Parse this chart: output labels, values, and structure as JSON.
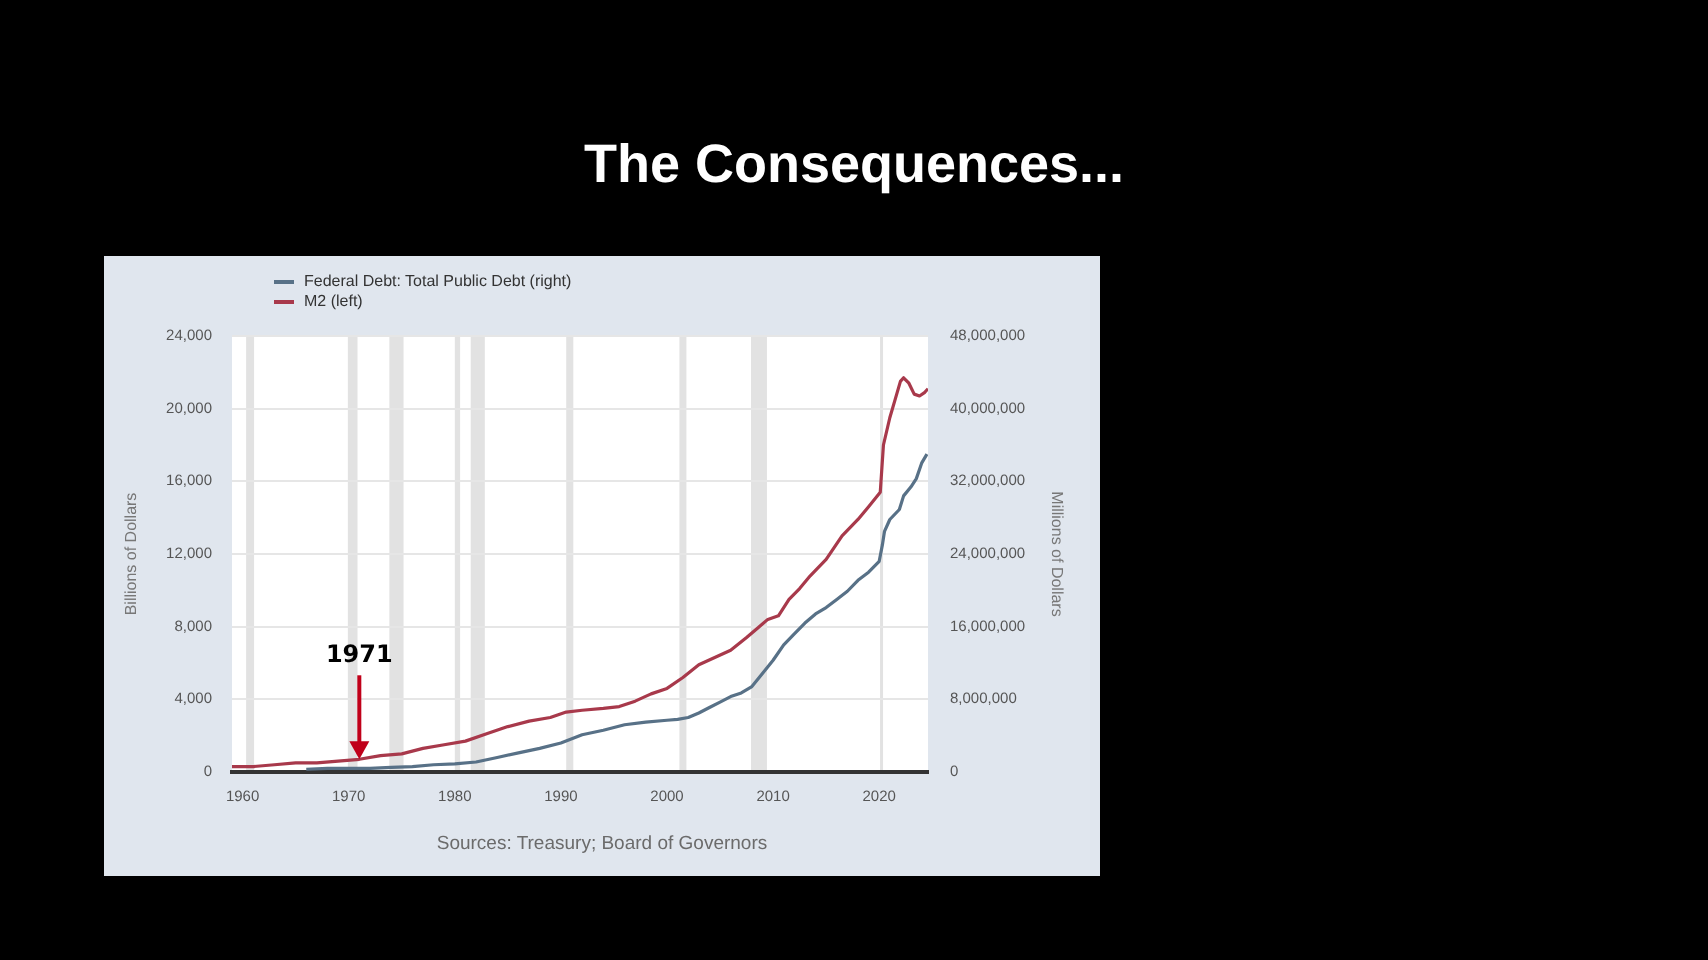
{
  "chart_data": {
    "type": "line",
    "title": "The Consequences...",
    "ylabel": "Billions of Dollars",
    "y2label": "Millions of Dollars",
    "legend": "top left",
    "grid": "y",
    "marker": "none",
    "xlim": [
      1959,
      2024.6
    ],
    "xticks": [
      1960,
      1970,
      1980,
      1990,
      2000,
      2010,
      2020
    ],
    "ylim": [
      0,
      24000
    ],
    "yticks": [
      0,
      {
        "value": 4000,
        "label": "4,000"
      },
      {
        "value": 8000,
        "label": "8,000"
      },
      {
        "value": 12000,
        "label": "12,000"
      },
      {
        "value": 16000,
        "label": "16,000"
      },
      {
        "value": 20000,
        "label": "20,000"
      },
      {
        "value": 24000,
        "label": "24,000"
      }
    ],
    "y2lim": [
      0,
      48000000
    ],
    "y2ticks": [
      0,
      {
        "value": 8000000,
        "label": "8,000,000"
      },
      {
        "value": 16000000,
        "label": "16,000,000"
      },
      {
        "value": 24000000,
        "label": "24,000,000"
      },
      {
        "value": 32000000,
        "label": "32,000,000"
      },
      {
        "value": 40000000,
        "label": "40,000,000"
      },
      {
        "value": 48000000,
        "label": "48,000,000"
      }
    ],
    "series": [
      {
        "name": "Federal Debt: Total Public Debt (right)",
        "color": "#587187",
        "axis": "y2",
        "x": [
          1966,
          1968,
          1970,
          1972,
          1974,
          1976,
          1978,
          1980,
          1982,
          1984,
          1986,
          1988,
          1990,
          1992,
          1994,
          1996,
          1998,
          2000,
          2001,
          2002,
          2003,
          2004,
          2005,
          2006,
          2007,
          2008,
          2008.9,
          2010,
          2011,
          2012,
          2013,
          2014,
          2015,
          2016,
          2017,
          2018,
          2019,
          2020,
          2020.3,
          2020.5,
          2021,
          2021.9,
          2022.3,
          2023,
          2023.5,
          2024,
          2024.5
        ],
        "values": [
          300000,
          400000,
          400000,
          400000,
          500000,
          600000,
          800000,
          900000,
          1100000,
          1600000,
          2100000,
          2600000,
          3200000,
          4100000,
          4600000,
          5200000,
          5500000,
          5700000,
          5800000,
          6000000,
          6500000,
          7100000,
          7700000,
          8300000,
          8700000,
          9400000,
          10700000,
          12300000,
          14000000,
          15200000,
          16400000,
          17400000,
          18100000,
          19000000,
          19900000,
          21100000,
          22000000,
          23200000,
          25000000,
          26500000,
          27800000,
          28900000,
          30400000,
          31400000,
          32300000,
          34000000,
          35000000
        ]
      },
      {
        "name": "M2 (left)",
        "color": "#a8394b",
        "axis": "y",
        "x": [
          1959,
          1961,
          1963,
          1965,
          1967,
          1969,
          1971,
          1973,
          1975,
          1977,
          1979,
          1981,
          1983,
          1985,
          1987,
          1989,
          1990.5,
          1992,
          1994,
          1995.5,
          1997,
          1998.5,
          2000,
          2001.5,
          2003,
          2004.5,
          2006,
          2007.5,
          2008.5,
          2009.5,
          2010.5,
          2011.5,
          2012.5,
          2013.5,
          2015,
          2016.5,
          2018,
          2019,
          2020.1,
          2020.4,
          2021,
          2021.5,
          2022,
          2022.3,
          2022.8,
          2023.3,
          2023.8,
          2024.3,
          2024.6
        ],
        "values": [
          300,
          300,
          400,
          500,
          500,
          600,
          700,
          900,
          1000,
          1300,
          1500,
          1700,
          2100,
          2500,
          2800,
          3000,
          3300,
          3400,
          3500,
          3600,
          3900,
          4300,
          4600,
          5200,
          5900,
          6300,
          6700,
          7400,
          7900,
          8400,
          8600,
          9500,
          10100,
          10800,
          11700,
          13000,
          13900,
          14600,
          15400,
          18000,
          19500,
          20500,
          21500,
          21700,
          21400,
          20800,
          20700,
          20900,
          21100
        ]
      }
    ],
    "bands": [
      {
        "axis": "x",
        "from": 1960.33,
        "to": 1961.08,
        "color": "#e2e2e2"
      },
      {
        "axis": "x",
        "from": 1969.92,
        "to": 1970.83,
        "color": "#e2e2e2"
      },
      {
        "axis": "x",
        "from": 1973.83,
        "to": 1975.17,
        "color": "#e2e2e2"
      },
      {
        "axis": "x",
        "from": 1980.0,
        "to": 1980.5,
        "color": "#e2e2e2"
      },
      {
        "axis": "x",
        "from": 1981.5,
        "to": 1982.83,
        "color": "#e2e2e2"
      },
      {
        "axis": "x",
        "from": 1990.5,
        "to": 1991.17,
        "color": "#e2e2e2"
      },
      {
        "axis": "x",
        "from": 2001.17,
        "to": 2001.83,
        "color": "#e2e2e2"
      },
      {
        "axis": "x",
        "from": 2007.92,
        "to": 2009.42,
        "color": "#e2e2e2"
      },
      {
        "axis": "x",
        "from": 2020.08,
        "to": 2020.25,
        "color": "#e2e2e2"
      }
    ],
    "annotations": [
      {
        "text": "1971",
        "x": 1971,
        "y": 700
      },
      "Sources: Treasury; Board of Governors"
    ]
  }
}
